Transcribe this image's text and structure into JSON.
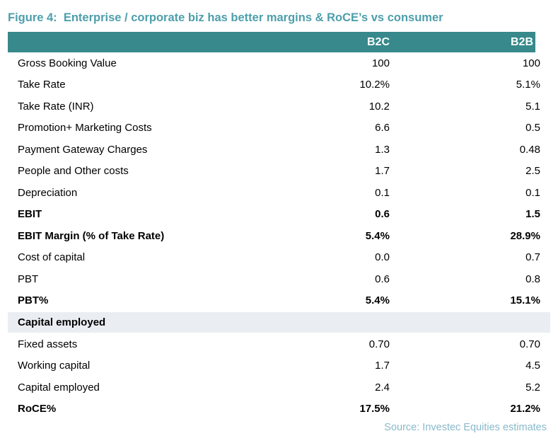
{
  "colors": {
    "title_text": "#4d9fab",
    "header_bg": "#37898b",
    "header_text": "#ffffff",
    "section_band_bg": "#eaeef2",
    "source_text": "#88b9cb",
    "body_text": "#000000"
  },
  "chart_data": {
    "type": "table",
    "title": "Figure 4:  Enterprise / corporate biz has better margins & RoCE’s vs consumer",
    "columns": [
      "",
      "B2C",
      "B2B"
    ],
    "rows": [
      {
        "label": "Gross Booking Value",
        "b2c": "100",
        "b2b": "100",
        "bold": false,
        "section": false
      },
      {
        "label": "Take Rate",
        "b2c": "10.2%",
        "b2b": "5.1%",
        "bold": false,
        "section": false
      },
      {
        "label": "Take Rate (INR)",
        "b2c": "10.2",
        "b2b": "5.1",
        "bold": false,
        "section": false
      },
      {
        "label": "Promotion+ Marketing Costs",
        "b2c": "6.6",
        "b2b": "0.5",
        "bold": false,
        "section": false
      },
      {
        "label": "Payment Gateway Charges",
        "b2c": "1.3",
        "b2b": "0.48",
        "bold": false,
        "section": false
      },
      {
        "label": "People and Other costs",
        "b2c": "1.7",
        "b2b": "2.5",
        "bold": false,
        "section": false
      },
      {
        "label": "Depreciation",
        "b2c": "0.1",
        "b2b": "0.1",
        "bold": false,
        "section": false
      },
      {
        "label": "EBIT",
        "b2c": "0.6",
        "b2b": "1.5",
        "bold": true,
        "section": false
      },
      {
        "label": "EBIT Margin (% of Take Rate)",
        "b2c": "5.4%",
        "b2b": "28.9%",
        "bold": true,
        "section": false
      },
      {
        "label": "Cost of capital",
        "b2c": "0.0",
        "b2b": "0.7",
        "bold": false,
        "section": false
      },
      {
        "label": "PBT",
        "b2c": "0.6",
        "b2b": "0.8",
        "bold": false,
        "section": false
      },
      {
        "label": "PBT%",
        "b2c": "5.4%",
        "b2b": "15.1%",
        "bold": true,
        "section": false
      },
      {
        "label": "Capital employed",
        "b2c": "",
        "b2b": "",
        "bold": true,
        "section": true
      },
      {
        "label": "Fixed assets",
        "b2c": "0.70",
        "b2b": "0.70",
        "bold": false,
        "section": false
      },
      {
        "label": "Working capital",
        "b2c": "1.7",
        "b2b": "4.5",
        "bold": false,
        "section": false
      },
      {
        "label": "Capital employed",
        "b2c": "2.4",
        "b2b": "5.2",
        "bold": false,
        "section": false
      },
      {
        "label": "RoCE%",
        "b2c": "17.5%",
        "b2b": "21.2%",
        "bold": true,
        "section": false
      }
    ],
    "source": "Source: Investec Equities estimates"
  }
}
